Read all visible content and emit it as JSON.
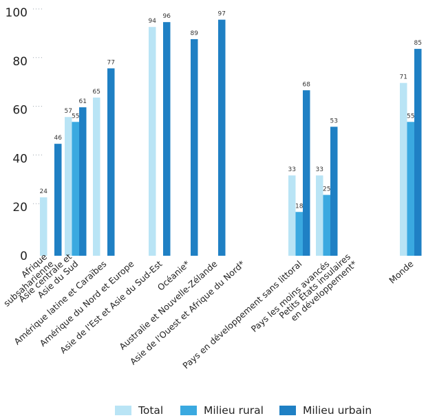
{
  "chart_data": {
    "type": "bar",
    "ylim": [
      0,
      100
    ],
    "yticks": [
      "0",
      "20",
      "40",
      "60",
      "80",
      "100"
    ],
    "categories": [
      "Afrique subsaharienne",
      "Asie centrale et Asie du Sud",
      "Amérique latine et Caraïbes",
      "Amérique du Nord et Europe",
      "Asie de l'Est et Asie du Sud-Est",
      "Océanie*",
      "Australie et Nouvelle-Zélande",
      "Asie de l'Ouest et Afrique du Nord*",
      "Pays en développement sans littoral",
      "Pays les moins avancés",
      "Petits États insulaires en développement*",
      "Monde"
    ],
    "category_label_lines": [
      [
        "Afrique",
        "subsaharienne"
      ],
      [
        "Asie centrale et",
        "Asie du Sud"
      ],
      [
        "Amérique latine et Caraïbes"
      ],
      [
        "Amérique du Nord et Europe"
      ],
      [
        "Asie de l'Est et Asie du Sud-Est"
      ],
      [
        "Océanie*"
      ],
      [
        "Australie et Nouvelle-Zélande"
      ],
      [
        "Asie de l'Ouest et Afrique du Nord*"
      ],
      [
        "Pays en développement sans littoral"
      ],
      [
        "Pays les moins avancés"
      ],
      [
        "Petits États insulaires",
        "en développement*"
      ],
      [
        "Monde"
      ]
    ],
    "series": [
      {
        "name": "Total",
        "color": "#b9e4f5",
        "values": [
          24,
          57,
          65,
          null,
          94,
          null,
          null,
          null,
          33,
          33,
          null,
          71
        ]
      },
      {
        "name": "Milieu rural",
        "color": "#3aa9e0",
        "values": [
          null,
          55,
          null,
          null,
          null,
          null,
          null,
          null,
          18,
          25,
          null,
          55
        ]
      },
      {
        "name": "Milieu urbain",
        "color": "#1f80c4",
        "values": [
          46,
          61,
          77,
          null,
          96,
          89,
          97,
          null,
          68,
          53,
          null,
          85
        ]
      }
    ]
  },
  "legend": {
    "total": "Total",
    "rural": "Milieu rural",
    "urbain": "Milieu urbain"
  }
}
